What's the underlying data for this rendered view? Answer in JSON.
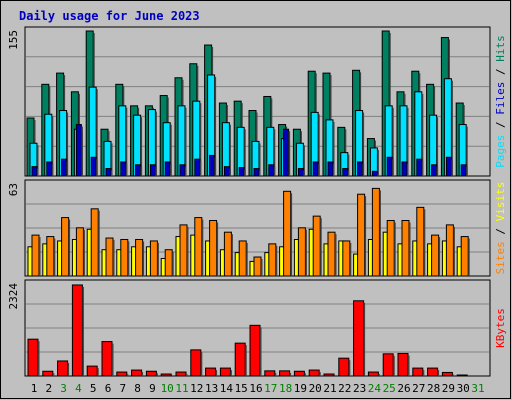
{
  "title": "Daily usage for June 2023",
  "colors": {
    "background": "#C0C0C0",
    "plot_bg": "#C0C0C0",
    "title": "#0000C0",
    "hits": "#008060",
    "files": "#00E0FF",
    "pages": "#0000C0",
    "visits": "#FFFF00",
    "sites": "#FF8000",
    "kbytes": "#FF0000",
    "weekend_day": "#008000",
    "weekday": "#000000"
  },
  "chart_data": [
    {
      "type": "bar",
      "name": "hits-files-pages",
      "categories": [
        "1",
        "2",
        "3",
        "4",
        "5",
        "6",
        "7",
        "8",
        "9",
        "10",
        "11",
        "12",
        "13",
        "14",
        "15",
        "16",
        "17",
        "18",
        "19",
        "20",
        "21",
        "22",
        "23",
        "24",
        "25",
        "26",
        "27",
        "28",
        "29",
        "30"
      ],
      "weekend_flags": [
        false,
        false,
        true,
        true,
        false,
        false,
        false,
        false,
        false,
        true,
        true,
        false,
        false,
        false,
        false,
        false,
        true,
        true,
        false,
        false,
        false,
        false,
        false,
        true,
        true,
        false,
        false,
        false,
        false,
        false
      ],
      "ymax_label": "155",
      "ylim": [
        0,
        155
      ],
      "axis_label_parts": [
        "Pages",
        "Files",
        "Hits"
      ],
      "series": [
        {
          "name": "Hits",
          "values": [
            62,
            98,
            110,
            90,
            155,
            50,
            98,
            75,
            75,
            86,
            105,
            120,
            140,
            78,
            80,
            70,
            85,
            55,
            50,
            112,
            110,
            52,
            113,
            40,
            155,
            90,
            112,
            98,
            148,
            78
          ]
        },
        {
          "name": "Files",
          "values": [
            35,
            66,
            70,
            50,
            95,
            37,
            75,
            65,
            71,
            57,
            75,
            80,
            108,
            57,
            52,
            37,
            52,
            40,
            35,
            68,
            60,
            25,
            70,
            30,
            75,
            75,
            90,
            65,
            104,
            55
          ]
        },
        {
          "name": "Pages",
          "values": [
            10,
            15,
            18,
            55,
            20,
            8,
            15,
            12,
            12,
            15,
            12,
            18,
            22,
            10,
            9,
            8,
            12,
            50,
            8,
            15,
            15,
            8,
            15,
            5,
            20,
            15,
            18,
            12,
            20,
            12
          ]
        }
      ]
    },
    {
      "type": "bar",
      "name": "visits-sites",
      "categories": [
        "1",
        "2",
        "3",
        "4",
        "5",
        "6",
        "7",
        "8",
        "9",
        "10",
        "11",
        "12",
        "13",
        "14",
        "15",
        "16",
        "17",
        "18",
        "19",
        "20",
        "21",
        "22",
        "23",
        "24",
        "25",
        "26",
        "27",
        "28",
        "29",
        "30"
      ],
      "ymax_label": "63",
      "ylim": [
        0,
        63
      ],
      "axis_label_parts": [
        "Sites",
        "Visits"
      ],
      "series": [
        {
          "name": "Visits",
          "values": [
            20,
            22,
            24,
            25,
            32,
            18,
            18,
            20,
            20,
            12,
            27,
            28,
            24,
            18,
            16,
            10,
            16,
            20,
            25,
            32,
            22,
            24,
            15,
            25,
            30,
            22,
            24,
            22,
            24,
            20
          ]
        },
        {
          "name": "Sites",
          "values": [
            28,
            27,
            40,
            33,
            46,
            26,
            25,
            25,
            24,
            18,
            35,
            40,
            38,
            30,
            24,
            13,
            22,
            58,
            33,
            41,
            30,
            24,
            56,
            60,
            38,
            38,
            47,
            28,
            35,
            27
          ]
        }
      ]
    },
    {
      "type": "bar",
      "name": "kbytes",
      "categories": [
        "1",
        "2",
        "3",
        "4",
        "5",
        "6",
        "7",
        "8",
        "9",
        "10",
        "11",
        "12",
        "13",
        "14",
        "15",
        "16",
        "17",
        "18",
        "19",
        "20",
        "21",
        "22",
        "23",
        "24",
        "25",
        "26",
        "27",
        "28",
        "29",
        "30"
      ],
      "ymax_label": "2324",
      "ylim": [
        0,
        2324
      ],
      "axis_label_parts": [
        "KBytes"
      ],
      "series": [
        {
          "name": "KBytes",
          "values": [
            930,
            120,
            380,
            2300,
            250,
            870,
            100,
            150,
            120,
            40,
            100,
            660,
            200,
            200,
            830,
            1280,
            130,
            130,
            120,
            150,
            40,
            450,
            1900,
            100,
            560,
            570,
            200,
            200,
            90,
            0
          ]
        }
      ]
    }
  ],
  "day_axis": [
    "1",
    "2",
    "3",
    "4",
    "5",
    "6",
    "7",
    "8",
    "9",
    "10",
    "11",
    "12",
    "13",
    "14",
    "15",
    "16",
    "17",
    "18",
    "19",
    "20",
    "21",
    "22",
    "23",
    "24",
    "25",
    "26",
    "27",
    "28",
    "29",
    "30",
    "31"
  ],
  "day_axis_weekend": [
    false,
    false,
    true,
    true,
    false,
    false,
    false,
    false,
    false,
    true,
    true,
    false,
    false,
    false,
    false,
    false,
    true,
    true,
    false,
    false,
    false,
    false,
    false,
    true,
    true,
    false,
    false,
    false,
    false,
    false,
    true
  ]
}
